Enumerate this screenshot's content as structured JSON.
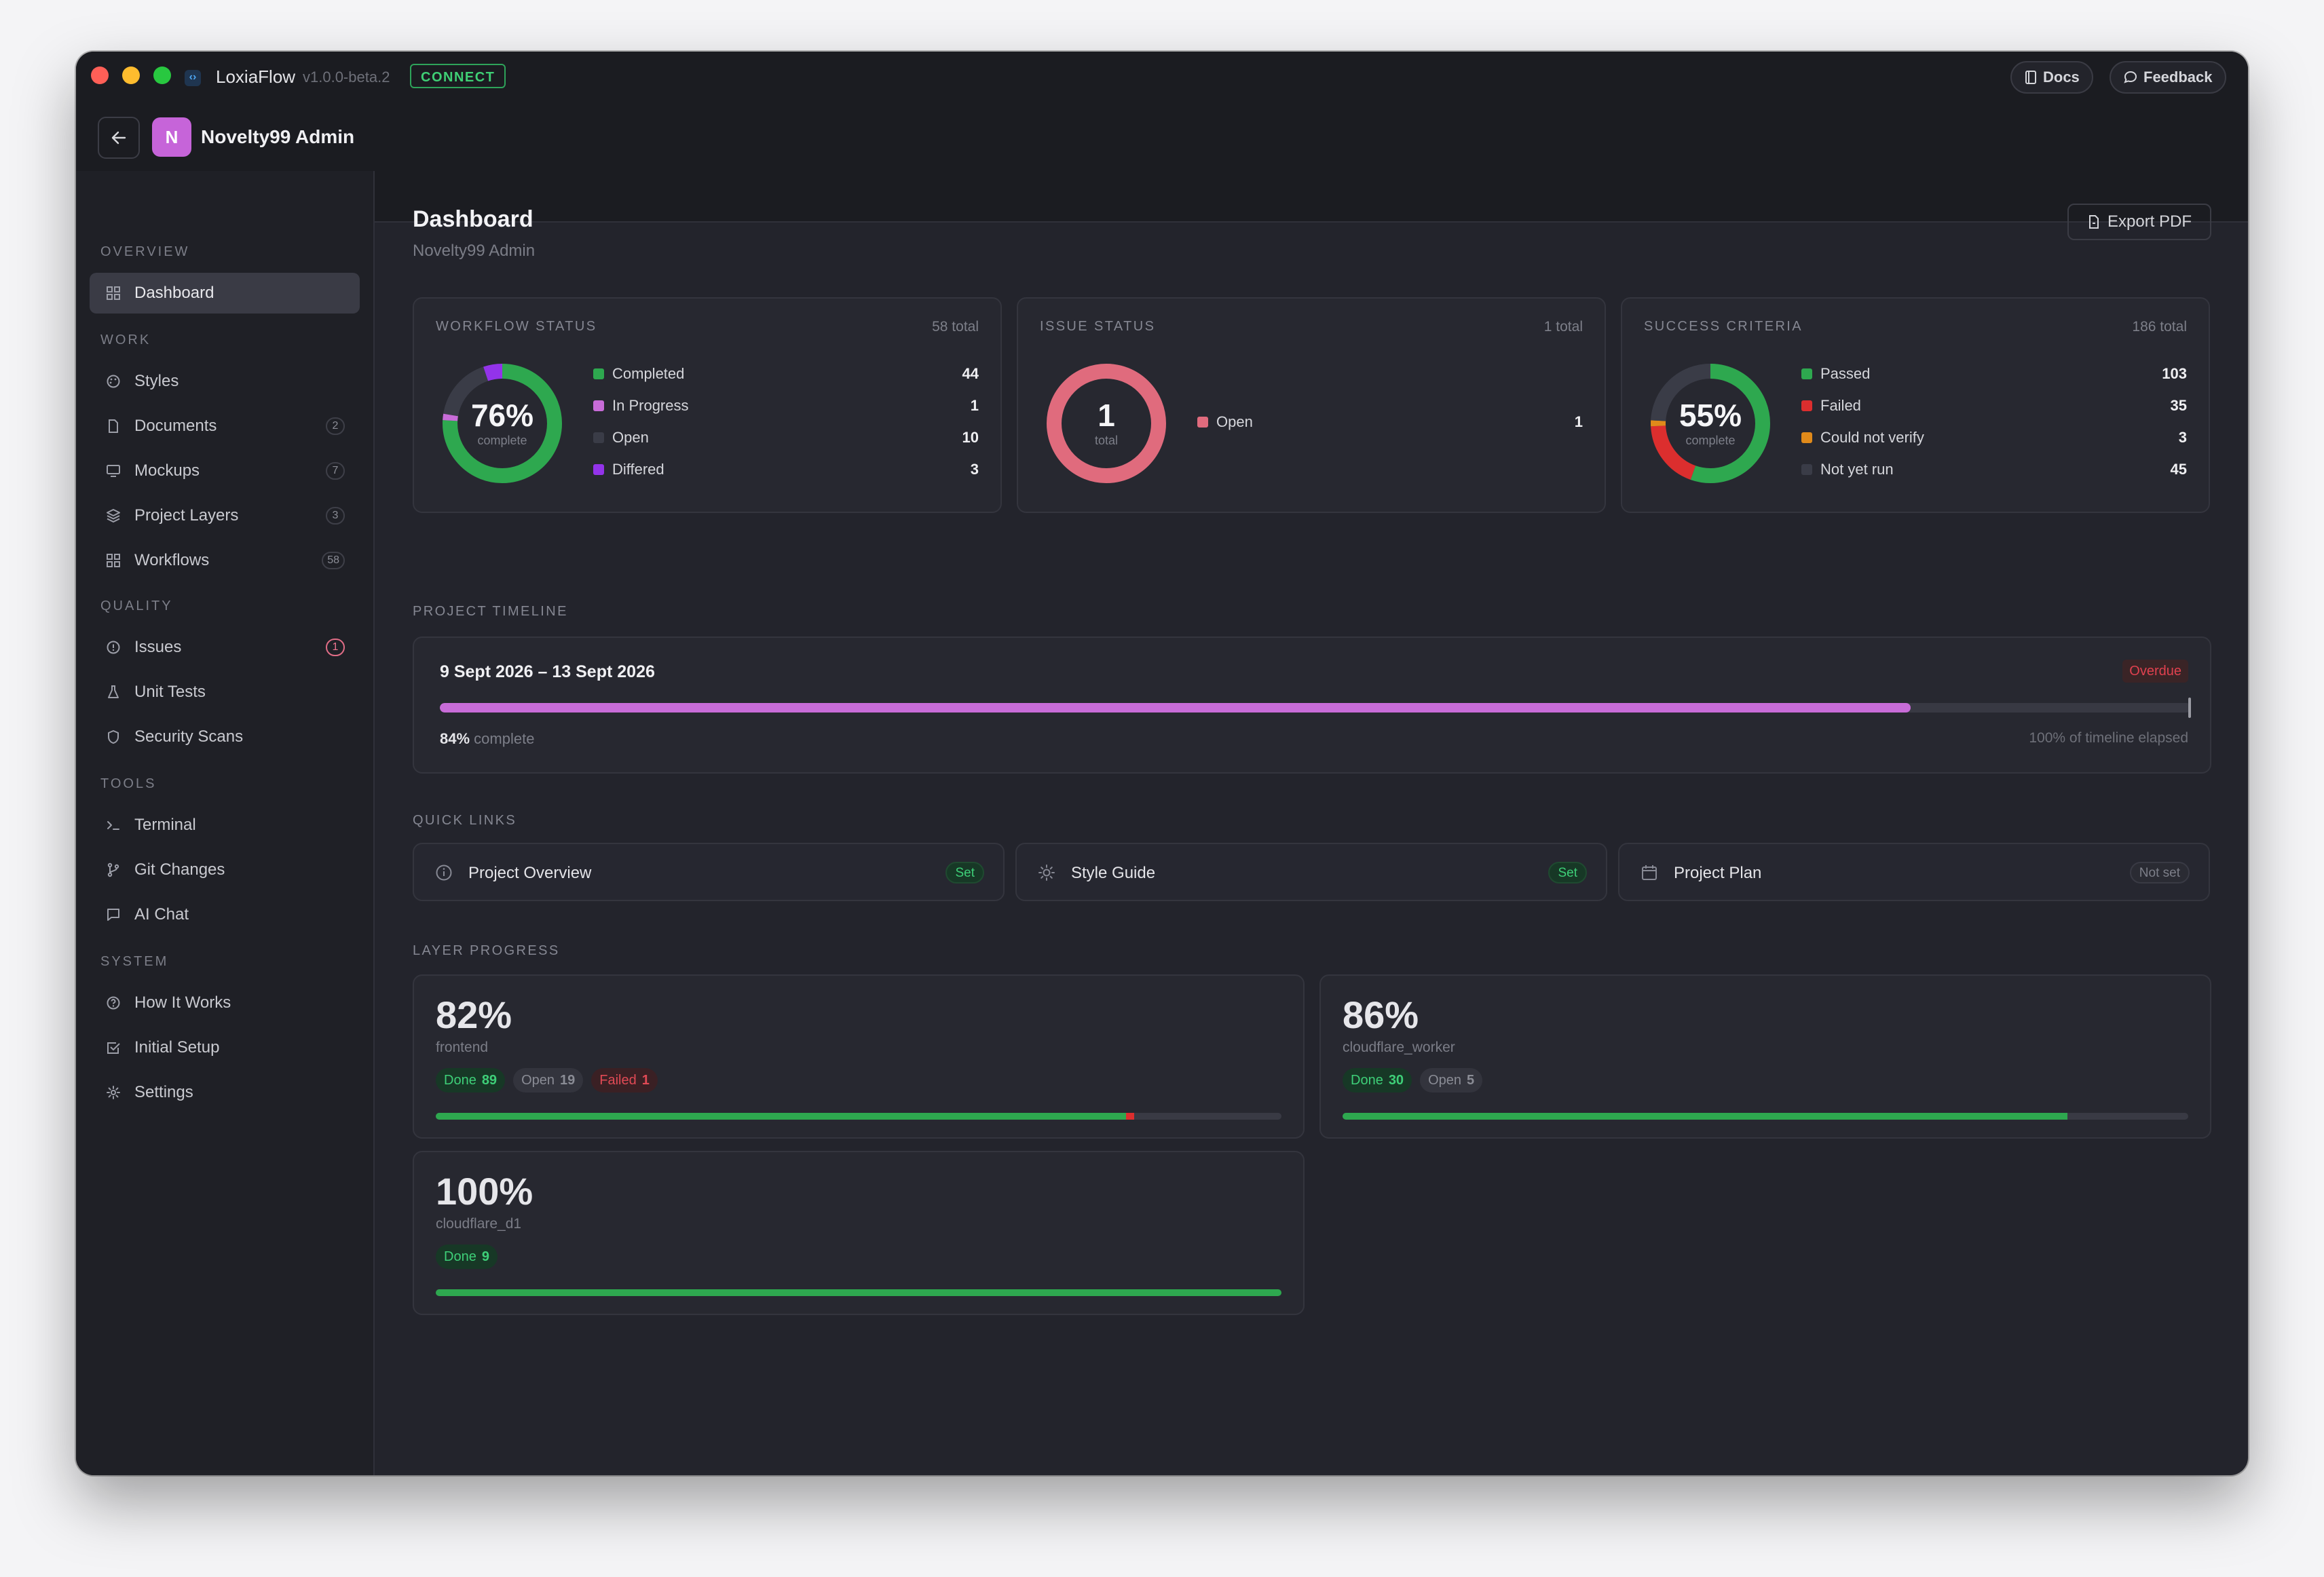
{
  "window": {
    "app_name": "LoxiaFlow",
    "version": "v1.0.0-beta.2",
    "connect_label": "CONNECT",
    "docs_label": "Docs",
    "feedback_label": "Feedback"
  },
  "header": {
    "avatar_initial": "N",
    "project_name": "Novelty99 Admin"
  },
  "sidebar": {
    "sections": {
      "overview": "OVERVIEW",
      "work": "WORK",
      "quality": "QUALITY",
      "tools": "TOOLS",
      "system": "SYSTEM"
    },
    "items": {
      "dashboard": {
        "label": "Dashboard"
      },
      "styles": {
        "label": "Styles"
      },
      "documents": {
        "label": "Documents",
        "count": "2"
      },
      "mockups": {
        "label": "Mockups",
        "count": "7"
      },
      "project_layers": {
        "label": "Project Layers",
        "count": "3"
      },
      "workflows": {
        "label": "Workflows",
        "count": "58"
      },
      "issues": {
        "label": "Issues",
        "count": "1"
      },
      "unit_tests": {
        "label": "Unit Tests"
      },
      "security_scans": {
        "label": "Security Scans"
      },
      "terminal": {
        "label": "Terminal"
      },
      "git_changes": {
        "label": "Git Changes"
      },
      "ai_chat": {
        "label": "AI Chat"
      },
      "how_it_works": {
        "label": "How It Works"
      },
      "initial_setup": {
        "label": "Initial Setup"
      },
      "settings": {
        "label": "Settings"
      }
    }
  },
  "main": {
    "title": "Dashboard",
    "subtitle": "Novelty99 Admin",
    "export_label": "Export PDF"
  },
  "workflow_status": {
    "label": "WORKFLOW STATUS",
    "total": "58 total",
    "center_value": "76%",
    "center_caption": "complete",
    "segments": [
      {
        "name": "Completed",
        "value": 44,
        "color": "#2ea84f"
      },
      {
        "name": "In Progress",
        "value": 1,
        "color": "#c86cd8"
      },
      {
        "name": "Open",
        "value": 10,
        "color": "#3a3c47"
      },
      {
        "name": "Differed",
        "value": 3,
        "color": "#9333ea"
      }
    ]
  },
  "issue_status": {
    "label": "ISSUE STATUS",
    "total": "1 total",
    "center_value": "1",
    "center_caption": "total",
    "segments": [
      {
        "name": "Open",
        "value": 1,
        "color": "#e06b7d"
      }
    ]
  },
  "success_criteria": {
    "label": "SUCCESS CRITERIA",
    "total": "186 total",
    "center_value": "55%",
    "center_caption": "complete",
    "segments": [
      {
        "name": "Passed",
        "value": 103,
        "color": "#2ea84f"
      },
      {
        "name": "Failed",
        "value": 35,
        "color": "#dc2e2e"
      },
      {
        "name": "Could not verify",
        "value": 3,
        "color": "#e08a1a"
      },
      {
        "name": "Not yet run",
        "value": 45,
        "color": "#3a3c47"
      }
    ]
  },
  "timeline": {
    "heading": "PROJECT TIMELINE",
    "range": "9 Sept 2026 – 13 Sept 2026",
    "status": "Overdue",
    "progress": 84,
    "progress_label": "84%",
    "progress_suffix": "complete",
    "elapsed_label": "100% of timeline elapsed"
  },
  "quick_links": {
    "heading": "QUICK LINKS",
    "items": [
      {
        "label": "Project Overview",
        "status": "Set"
      },
      {
        "label": "Style Guide",
        "status": "Set"
      },
      {
        "label": "Project Plan",
        "status": "Not set"
      }
    ]
  },
  "layer_progress": {
    "heading": "LAYER PROGRESS",
    "layers": [
      {
        "percent": "82%",
        "name": "frontend",
        "color": "#e06b7d",
        "done": 89,
        "open": 19,
        "failed": 1,
        "done_label": "Done",
        "open_label": "Open",
        "failed_label": "Failed"
      },
      {
        "percent": "86%",
        "name": "cloudflare_worker",
        "color": "#c86cd8",
        "done": 30,
        "open": 5,
        "done_label": "Done",
        "open_label": "Open"
      },
      {
        "percent": "100%",
        "name": "cloudflare_d1",
        "color": "#2ea84f",
        "done": 9,
        "done_label": "Done"
      }
    ]
  }
}
